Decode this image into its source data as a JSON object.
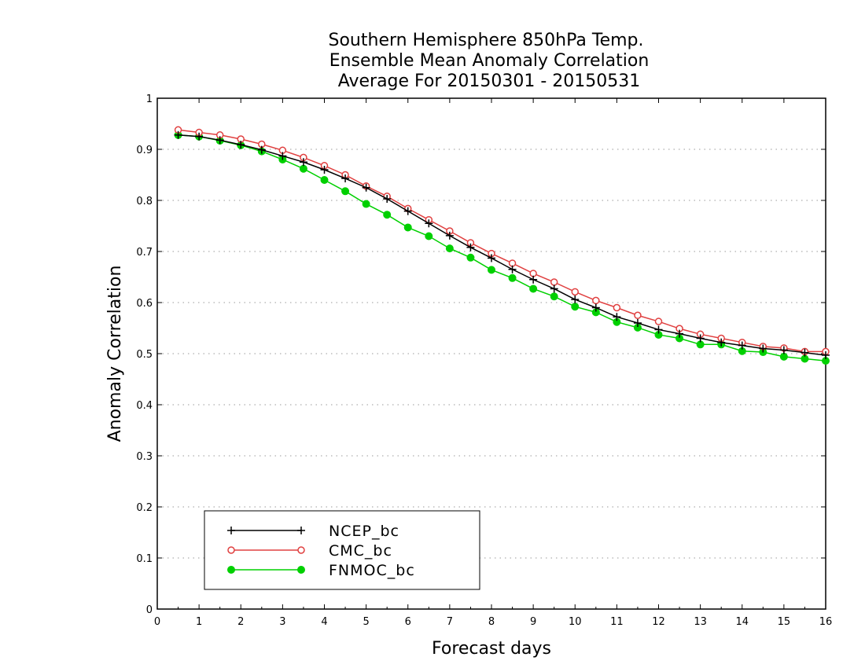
{
  "chart_data": {
    "type": "line",
    "title": [
      "Southern Hemisphere 850hPa Temp.",
      "Ensemble Mean Anomaly Correlation",
      "Average For 20150301 - 20150531"
    ],
    "xlabel": "Forecast days",
    "ylabel": "Anomaly Correlation",
    "xlim": [
      0,
      16
    ],
    "ylim": [
      0,
      1
    ],
    "xticks": [
      "0",
      "1",
      "2",
      "3",
      "4",
      "5",
      "6",
      "7",
      "8",
      "9",
      "10",
      "11",
      "12",
      "13",
      "14",
      "15",
      "16"
    ],
    "yticks": [
      "0",
      "0.1",
      "0.2",
      "0.3",
      "0.4",
      "0.5",
      "0.6",
      "0.7",
      "0.8",
      "0.9",
      "1"
    ],
    "grid": "horizontal-dotted",
    "legend_position": "bottom-left",
    "x": [
      0.5,
      1,
      1.5,
      2,
      2.5,
      3,
      3.5,
      4,
      4.5,
      5,
      5.5,
      6,
      6.5,
      7,
      7.5,
      8,
      8.5,
      9,
      9.5,
      10,
      10.5,
      11,
      11.5,
      12,
      12.5,
      13,
      13.5,
      14,
      14.5,
      15,
      15.5,
      16
    ],
    "series": [
      {
        "name": "NCEP_bc",
        "color": "#000000",
        "marker": "plus",
        "values": [
          0.928,
          0.925,
          0.918,
          0.909,
          0.899,
          0.887,
          0.875,
          0.86,
          0.843,
          0.825,
          0.803,
          0.779,
          0.755,
          0.731,
          0.708,
          0.687,
          0.665,
          0.645,
          0.627,
          0.606,
          0.59,
          0.572,
          0.56,
          0.547,
          0.539,
          0.53,
          0.522,
          0.516,
          0.51,
          0.507,
          0.502,
          0.497
        ]
      },
      {
        "name": "CMC_bc",
        "color": "#e04040",
        "marker": "open-circle",
        "values": [
          0.938,
          0.933,
          0.928,
          0.92,
          0.91,
          0.898,
          0.884,
          0.868,
          0.85,
          0.828,
          0.808,
          0.784,
          0.762,
          0.74,
          0.717,
          0.696,
          0.677,
          0.657,
          0.64,
          0.621,
          0.604,
          0.59,
          0.575,
          0.563,
          0.549,
          0.538,
          0.53,
          0.522,
          0.514,
          0.511,
          0.504,
          0.504
        ]
      },
      {
        "name": "FNMOC_bc",
        "color": "#00d000",
        "marker": "filled-circle",
        "values": [
          0.928,
          0.925,
          0.917,
          0.908,
          0.896,
          0.88,
          0.862,
          0.84,
          0.818,
          0.793,
          0.772,
          0.747,
          0.73,
          0.706,
          0.688,
          0.664,
          0.648,
          0.627,
          0.612,
          0.592,
          0.581,
          0.562,
          0.551,
          0.537,
          0.53,
          0.518,
          0.518,
          0.505,
          0.503,
          0.494,
          0.49,
          0.486
        ]
      }
    ]
  }
}
